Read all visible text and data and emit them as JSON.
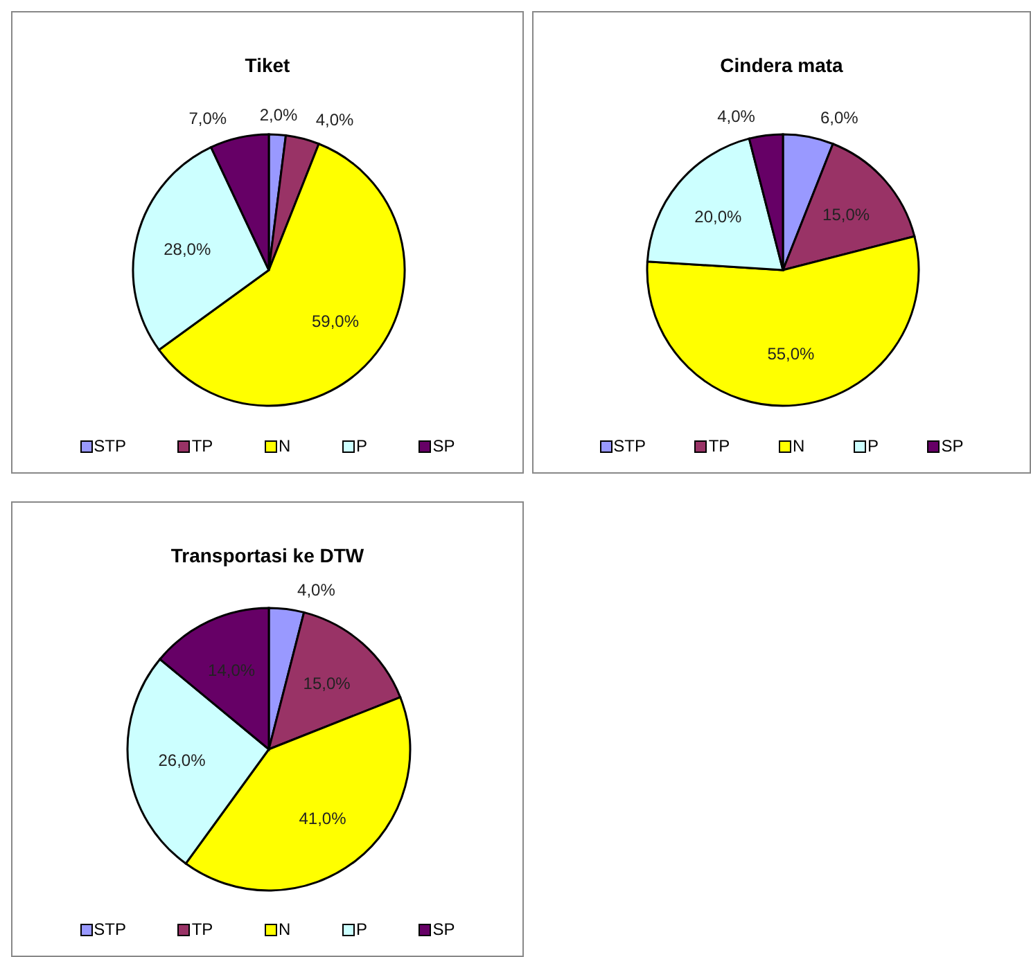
{
  "chart_data": [
    {
      "type": "pie",
      "title": "Tiket",
      "categories": [
        "STP",
        "TP",
        "N",
        "P",
        "SP"
      ],
      "values": [
        2,
        4,
        59,
        28,
        7
      ],
      "value_labels": [
        "2,0%",
        "4,0%",
        "59,0%",
        "28,0%",
        "7,0%"
      ],
      "colors": [
        "#9999ff",
        "#993366",
        "#ffff00",
        "#ccffff",
        "#660066"
      ],
      "legend": "bottom"
    },
    {
      "type": "pie",
      "title": "Cindera mata",
      "categories": [
        "STP",
        "TP",
        "N",
        "P",
        "SP"
      ],
      "values": [
        6,
        15,
        55,
        20,
        4
      ],
      "value_labels": [
        "6,0%",
        "15,0%",
        "55,0%",
        "20,0%",
        "4,0%"
      ],
      "colors": [
        "#9999ff",
        "#993366",
        "#ffff00",
        "#ccffff",
        "#660066"
      ],
      "legend": "bottom"
    },
    {
      "type": "pie",
      "title": "Transportasi ke DTW",
      "categories": [
        "STP",
        "TP",
        "N",
        "P",
        "SP"
      ],
      "values": [
        4,
        15,
        41,
        26,
        14
      ],
      "value_labels": [
        "4,0%",
        "15,0%",
        "41,0%",
        "26,0%",
        "14,0%"
      ],
      "colors": [
        "#9999ff",
        "#993366",
        "#ffff00",
        "#ccffff",
        "#660066"
      ],
      "legend": "bottom"
    }
  ]
}
